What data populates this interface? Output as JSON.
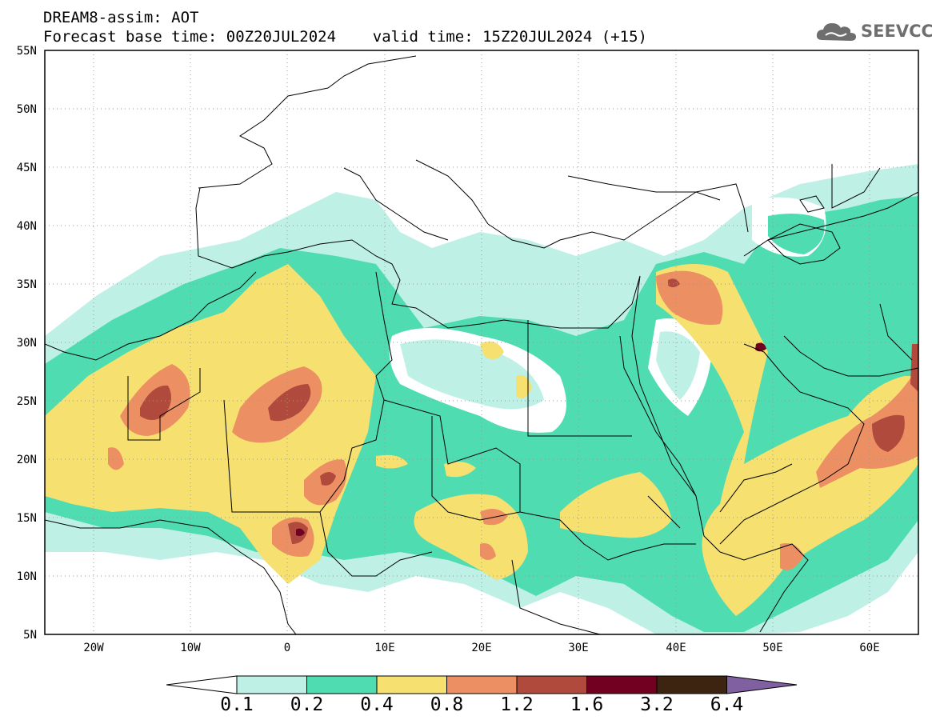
{
  "header": {
    "line1": "DREAM8-assim: AOT",
    "line2": "Forecast base time: 00Z20JUL2024    valid time: 15Z20JUL2024 (+15)"
  },
  "logo": {
    "text": "SEEVCCC",
    "icon": "cloud-icon",
    "color": "#6e6e6e"
  },
  "map": {
    "lon_range": [
      -25,
      65
    ],
    "lat_range": [
      5,
      55
    ],
    "lat_ticks": [
      "55N",
      "50N",
      "45N",
      "40N",
      "35N",
      "30N",
      "25N",
      "20N",
      "15N",
      "10N",
      "5N"
    ],
    "lon_ticks": [
      "20W",
      "10W",
      "0",
      "10E",
      "20E",
      "30E",
      "40E",
      "50E",
      "60E"
    ],
    "grid": "dotted"
  },
  "colorbar": {
    "labels": [
      "0.1",
      "0.2",
      "0.4",
      "0.8",
      "1.2",
      "1.6",
      "3.2",
      "6.4"
    ],
    "colors": [
      "#ffffff",
      "#bff0e6",
      "#4fdcb0",
      "#f5e070",
      "#ec9064",
      "#b04a3c",
      "#720020",
      "#3c2410",
      "#8060a0"
    ]
  }
}
